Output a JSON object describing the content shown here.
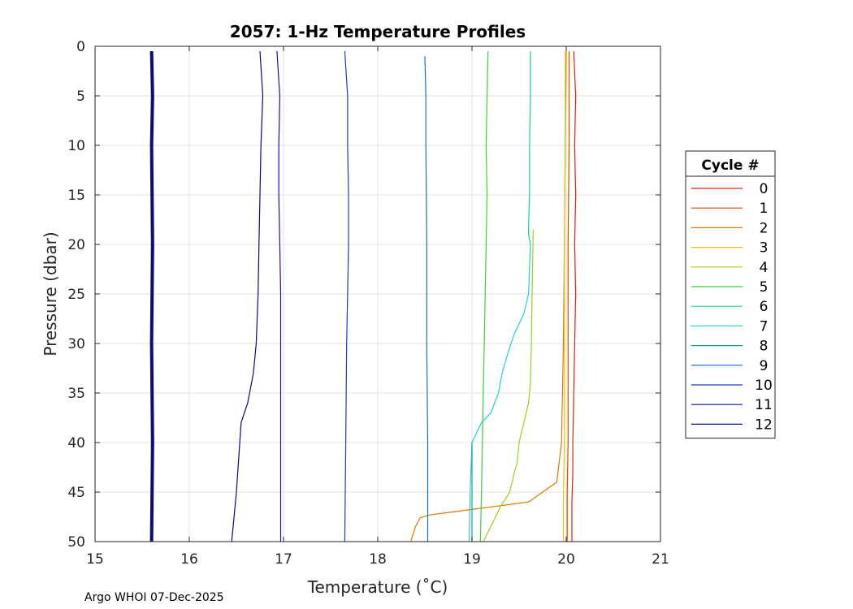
{
  "chart_data": {
    "type": "line",
    "title": "2057: 1-Hz Temperature Profiles",
    "xlabel": "Temperature (˚C)",
    "ylabel": "Pressure (dbar)",
    "xlim": [
      15,
      21
    ],
    "ylim": [
      0,
      50
    ],
    "y_reversed": true,
    "xticks": [
      15,
      16,
      17,
      18,
      19,
      20,
      21
    ],
    "yticks": [
      0,
      5,
      10,
      15,
      20,
      25,
      30,
      35,
      40,
      45,
      50
    ],
    "grid": true,
    "legend_title": "Cycle #",
    "legend_position": "outside-right",
    "series": [
      {
        "name": "0",
        "color": "#d62810",
        "x": [
          20.08,
          20.1,
          20.09,
          20.1,
          20.09,
          20.1,
          20.09,
          20.08,
          20.07,
          20.07,
          20.06,
          20.06
        ],
        "y": [
          0.5,
          5,
          10,
          15,
          20,
          25,
          30,
          35,
          40,
          43,
          46,
          50
        ]
      },
      {
        "name": "1",
        "color": "#d94a00",
        "x": [
          20.03,
          20.03,
          20.02,
          20.02,
          20.02,
          20.01,
          20.01
        ],
        "y": [
          0.5,
          10,
          20,
          30,
          40,
          45,
          50
        ]
      },
      {
        "name": "2",
        "color": "#e07800",
        "x": [
          20.0,
          19.99,
          19.98,
          19.97,
          19.95,
          19.9,
          19.6,
          19.2,
          18.8,
          18.55,
          18.45,
          18.4,
          18.35
        ],
        "y": [
          0.5,
          10,
          20,
          30,
          40,
          44,
          46,
          46.5,
          47,
          47.3,
          47.6,
          48.5,
          50
        ]
      },
      {
        "name": "3",
        "color": "#e6c800",
        "x": [
          19.99,
          19.99,
          19.98,
          19.98,
          19.98,
          19.97,
          19.97
        ],
        "y": [
          0.5,
          10,
          20,
          30,
          40,
          46,
          50
        ]
      },
      {
        "name": "4",
        "color": "#9ad21c",
        "x": [
          19.65,
          19.64,
          19.63,
          19.62,
          19.6,
          19.55,
          19.5,
          19.48,
          19.45,
          19.4,
          19.3,
          19.25,
          19.12
        ],
        "y": [
          18.5,
          24,
          30,
          34,
          36,
          38,
          40,
          42,
          43,
          45,
          46.5,
          47.5,
          50
        ]
      },
      {
        "name": "5",
        "color": "#3ccf3c",
        "x": [
          19.17,
          19.16,
          19.15,
          19.16,
          19.15,
          19.14,
          19.13,
          19.12,
          19.11,
          19.1,
          19.09
        ],
        "y": [
          0.5,
          5,
          10,
          15,
          20,
          25,
          30,
          35,
          40,
          45,
          50
        ]
      },
      {
        "name": "6",
        "color": "#1ed28c",
        "x": [
          19.62,
          19.62,
          19.61,
          19.61,
          19.6,
          19.6,
          19.62
        ],
        "y": [
          0.5,
          5,
          10,
          15,
          18,
          19,
          20
        ]
      },
      {
        "name": "7",
        "color": "#22d2d2",
        "x": [
          19.62,
          19.6,
          19.55,
          19.45,
          19.38,
          19.32,
          19.28,
          19.2,
          19.1,
          19.0,
          18.98,
          18.97
        ],
        "y": [
          20,
          25,
          27,
          29,
          31,
          33,
          35,
          37,
          38,
          40,
          45,
          50
        ]
      },
      {
        "name": "8",
        "color": "#1e9c9c",
        "x": [
          19.0,
          19.0,
          19.0,
          19.0,
          19.0
        ],
        "y": [
          40,
          45,
          48,
          49,
          50
        ]
      },
      {
        "name": "9",
        "color": "#1e6ebe",
        "x": [
          18.5,
          18.51,
          18.51,
          18.52,
          18.52,
          18.53,
          18.53
        ],
        "y": [
          1,
          5,
          10,
          20,
          30,
          40,
          50
        ]
      },
      {
        "name": "10",
        "color": "#1e3cb4",
        "x": [
          17.65,
          17.68,
          17.68,
          17.69,
          17.69,
          17.68,
          17.67,
          17.66,
          17.65
        ],
        "y": [
          0.5,
          5,
          10,
          15,
          20,
          25,
          30,
          40,
          50
        ]
      },
      {
        "name": "11",
        "color": "#1414a0",
        "x": [
          16.93,
          16.96,
          16.95,
          16.95,
          16.96,
          16.97,
          16.97,
          16.97,
          16.97
        ],
        "y": [
          0.5,
          5,
          10,
          15,
          20,
          25,
          30,
          40,
          50
        ]
      },
      {
        "name": "12",
        "color": "#0a0a82",
        "x": [
          16.75,
          16.78,
          16.76,
          16.75,
          16.74,
          16.73,
          16.71,
          16.68,
          16.62,
          16.55,
          16.5,
          16.45
        ],
        "y": [
          0.5,
          5,
          10,
          15,
          20,
          25,
          30,
          33,
          36,
          38,
          45,
          50
        ]
      },
      {
        "name": "",
        "color": "#0a0a82",
        "x": [
          15.6,
          15.61,
          15.6,
          15.61,
          15.6,
          15.61,
          15.6
        ],
        "y": [
          0.5,
          5,
          10,
          20,
          30,
          40,
          50
        ],
        "bold": true
      }
    ]
  },
  "footer": "Argo WHOI 07-Dec-2025"
}
